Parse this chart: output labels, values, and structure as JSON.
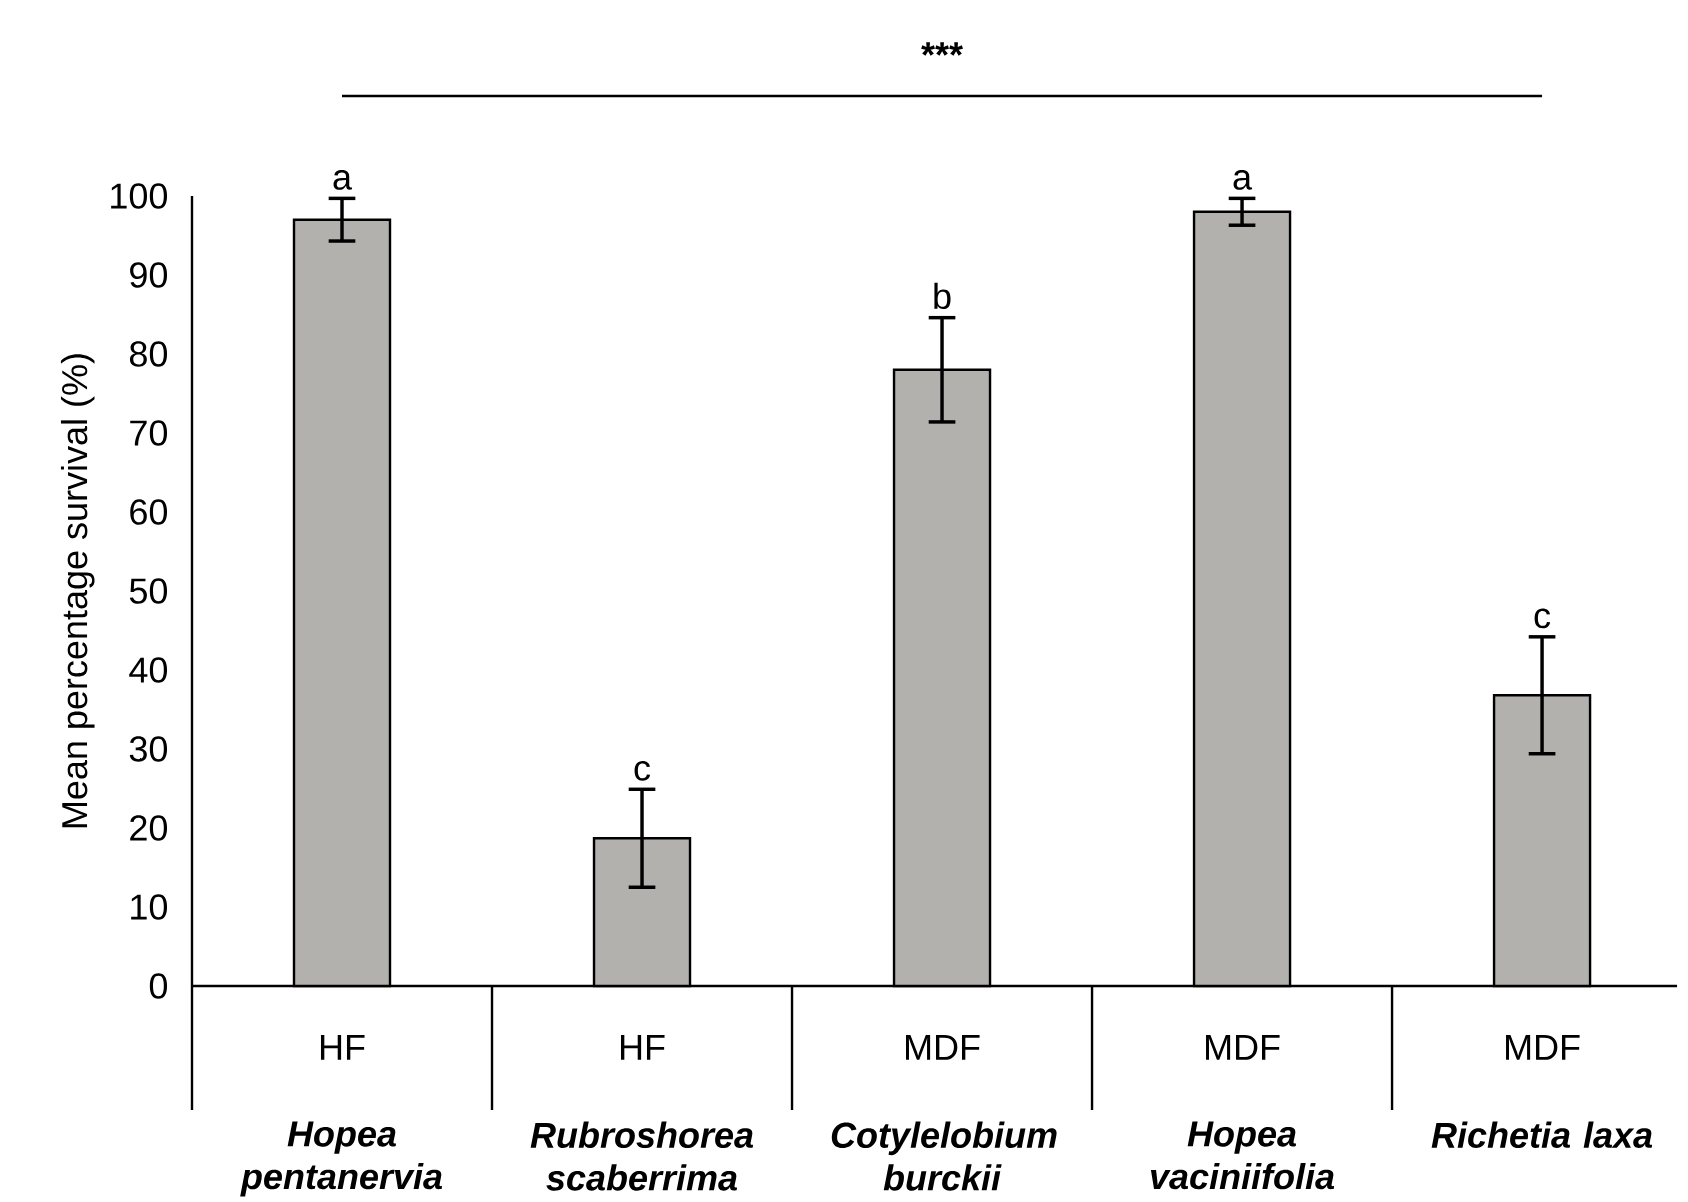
{
  "chart_data": {
    "type": "bar",
    "ylabel": "Mean percentage survival (%)",
    "categories": [
      "Hopea pentanervia",
      "Rubroshorea scaberrima",
      "Cotylelobium burckii",
      "Hopea vaciniifolia",
      "Richetia laxa"
    ],
    "values": [
      97,
      18.7,
      78,
      98,
      36.8
    ],
    "errors": [
      2.7,
      6.2,
      6.6,
      1.7,
      7.4
    ],
    "color": "#b3b1ae",
    "ylim": [
      0,
      100
    ],
    "yticks": [
      0,
      10,
      20,
      30,
      40,
      50,
      60,
      70,
      80,
      90,
      100
    ],
    "annotations": [
      "***",
      {
        "text": "a",
        "x": "Hopea pentanervia",
        "y": 99.7
      },
      {
        "text": "c",
        "x": "Rubroshorea scaberrima",
        "y": 24.9
      },
      {
        "text": "b",
        "x": "Cotylelobium burckii",
        "y": 84.6
      },
      {
        "text": "a",
        "x": "Hopea vaciniifolia",
        "y": 99.7
      },
      {
        "text": "c",
        "x": "Richetia laxa",
        "y": 44.2
      },
      "HF",
      "HF",
      "MDF",
      "MDF",
      "MDF"
    ]
  }
}
